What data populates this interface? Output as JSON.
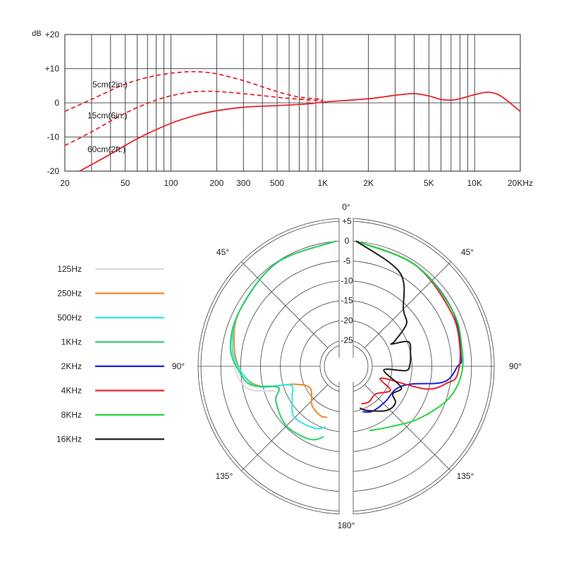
{
  "chart_data": [
    {
      "type": "line",
      "title": "",
      "xlabel": "",
      "ylabel": "",
      "x_scale": "log",
      "xlim": [
        20,
        20000
      ],
      "ylim": [
        -20,
        20
      ],
      "grid": true,
      "y_axis_unit": "dB",
      "x_ticks": [
        {
          "value": 20,
          "label": "20"
        },
        {
          "value": 50,
          "label": "50"
        },
        {
          "value": 100,
          "label": "100"
        },
        {
          "value": 200,
          "label": "200"
        },
        {
          "value": 300,
          "label": "300"
        },
        {
          "value": 500,
          "label": "500"
        },
        {
          "value": 1000,
          "label": "1K"
        },
        {
          "value": 2000,
          "label": "2K"
        },
        {
          "value": 5000,
          "label": "5K"
        },
        {
          "value": 10000,
          "label": "10K"
        },
        {
          "value": 20000,
          "label": "20KHz"
        }
      ],
      "y_ticks": [
        {
          "value": 20,
          "label": "+20"
        },
        {
          "value": 10,
          "label": "+10"
        },
        {
          "value": 0,
          "label": "0"
        },
        {
          "value": -10,
          "label": "-10"
        },
        {
          "value": -20,
          "label": "-20"
        }
      ],
      "series": [
        {
          "name": "5cm(2in.)",
          "color": "#e8232a",
          "dashed": true,
          "points": [
            [
              20,
              -2.5
            ],
            [
              30,
              1
            ],
            [
              50,
              5.5
            ],
            [
              80,
              8
            ],
            [
              120,
              9
            ],
            [
              150,
              9.1
            ],
            [
              200,
              8.5
            ],
            [
              300,
              6.5
            ],
            [
              500,
              3.3
            ],
            [
              700,
              1.7
            ],
            [
              1000,
              1
            ]
          ]
        },
        {
          "name": "15cm(6in.)",
          "color": "#e8232a",
          "dashed": true,
          "points": [
            [
              20,
              -12.5
            ],
            [
              30,
              -8.5
            ],
            [
              50,
              -3
            ],
            [
              80,
              0.8
            ],
            [
              120,
              2.8
            ],
            [
              170,
              3.4
            ],
            [
              250,
              3
            ],
            [
              400,
              2.1
            ],
            [
              600,
              1.3
            ],
            [
              1000,
              0.6
            ]
          ]
        },
        {
          "name": "60cm(2ft.)",
          "color": "#e8232a",
          "dashed": false,
          "points": [
            [
              25,
              -20
            ],
            [
              40,
              -15
            ],
            [
              60,
              -10.5
            ],
            [
              100,
              -6
            ],
            [
              150,
              -3.5
            ],
            [
              200,
              -2.3
            ],
            [
              300,
              -1.3
            ],
            [
              500,
              -0.8
            ],
            [
              800,
              -0.3
            ],
            [
              1000,
              0.2
            ],
            [
              2000,
              1.2
            ],
            [
              3000,
              2.2
            ],
            [
              4000,
              2.7
            ],
            [
              5000,
              2
            ],
            [
              6000,
              1
            ],
            [
              7000,
              0.8
            ],
            [
              8000,
              1.2
            ],
            [
              10000,
              2.4
            ],
            [
              12000,
              3.1
            ],
            [
              14000,
              2.6
            ],
            [
              16000,
              1
            ],
            [
              20000,
              -2.5
            ]
          ]
        }
      ],
      "annotations": [
        "5cm(2in.)",
        "15cm(6in.)",
        "60cm(2ft.)"
      ]
    },
    {
      "type": "polar",
      "title": "",
      "r_unit": "dB",
      "r_range": [
        -25,
        5
      ],
      "r_ticks": [
        "+5",
        "0",
        "-5",
        "-10",
        "-15",
        "-20",
        "-25"
      ],
      "r_tick_values": [
        5,
        0,
        -5,
        -10,
        -15,
        -20,
        -25
      ],
      "angle_labels": [
        "0°",
        "45°",
        "45°",
        "90°",
        "90°",
        "135°",
        "135°",
        "180°"
      ],
      "legend_placement": "left",
      "series": [
        {
          "name": "125Hz",
          "color": "#dcdcdc",
          "side": "left",
          "points": [
            [
              0,
              0
            ],
            [
              30,
              -1.5
            ],
            [
              60,
              -3.5
            ],
            [
              80,
              -5
            ],
            [
              95,
              -6.5
            ],
            [
              105,
              -9
            ],
            [
              112,
              -15
            ]
          ]
        },
        {
          "name": "250Hz",
          "color": "#f0882a",
          "side": "left",
          "points": [
            [
              0,
              0
            ],
            [
              30,
              -1.5
            ],
            [
              60,
              -3.5
            ],
            [
              80,
              -5.5
            ],
            [
              95,
              -8
            ],
            [
              105,
              -12
            ],
            [
              113,
              -20
            ],
            [
              130,
              -23
            ],
            [
              148,
              -20
            ],
            [
              162,
              -18.5
            ],
            [
              170,
              -18.5
            ]
          ]
        },
        {
          "name": "500Hz",
          "color": "#2ce8e8",
          "side": "left",
          "points": [
            [
              0,
              0
            ],
            [
              30,
              -1.5
            ],
            [
              60,
              -3.5
            ],
            [
              80,
              -5
            ],
            [
              95,
              -8
            ],
            [
              105,
              -11.5
            ],
            [
              112,
              -19
            ],
            [
              125,
              -18
            ],
            [
              140,
              -15
            ],
            [
              160,
              -15
            ],
            [
              170,
              -16
            ]
          ]
        },
        {
          "name": "1KHz",
          "color": "#2fcf6a",
          "side": "left",
          "points": [
            [
              0,
              0
            ],
            [
              30,
              -1.5
            ],
            [
              60,
              -3.5
            ],
            [
              80,
              -4.5
            ],
            [
              95,
              -7.5
            ],
            [
              103,
              -10
            ],
            [
              110,
              -16
            ],
            [
              120,
              -14
            ],
            [
              140,
              -12
            ],
            [
              160,
              -12
            ],
            [
              170,
              -13.5
            ]
          ]
        },
        {
          "name": "2KHz",
          "color": "#1c22d6",
          "side": "right",
          "points": [
            [
              0,
              0
            ],
            [
              30,
              -2
            ],
            [
              60,
              -3.5
            ],
            [
              85,
              -5
            ],
            [
              90,
              -6
            ],
            [
              100,
              -9
            ],
            [
              108,
              -17
            ],
            [
              120,
              -20
            ],
            [
              140,
              -20
            ],
            [
              160,
              -19.5
            ],
            [
              172,
              -20
            ]
          ]
        },
        {
          "name": "4KHz",
          "color": "#e8232a",
          "side": "right",
          "points": [
            [
              0,
              0
            ],
            [
              30,
              -2
            ],
            [
              60,
              -4
            ],
            [
              80,
              -5
            ],
            [
              95,
              -6
            ],
            [
              100,
              -8
            ],
            [
              108,
              -13
            ],
            [
              115,
              -24.5
            ],
            [
              125,
              -21
            ],
            [
              145,
              -23
            ],
            [
              160,
              -22
            ],
            [
              172,
              -22
            ]
          ]
        },
        {
          "name": "8KHz",
          "color": "#23d63c",
          "side": "right",
          "points": [
            [
              0,
              0
            ],
            [
              30,
              -2
            ],
            [
              60,
              -3.5
            ],
            [
              80,
              -4.5
            ],
            [
              95,
              -5
            ],
            [
              110,
              -7
            ],
            [
              130,
              -11
            ],
            [
              150,
              -14
            ],
            [
              168,
              -15
            ]
          ]
        },
        {
          "name": "16KHz",
          "color": "#1e1e1e",
          "side": "right",
          "points": [
            [
              0,
              0
            ],
            [
              25,
              -5.5
            ],
            [
              40,
              -13
            ],
            [
              50,
              -15
            ],
            [
              57,
              -20
            ],
            [
              58,
              -21
            ],
            [
              65,
              -17
            ],
            [
              77,
              -17.5
            ],
            [
              88,
              -18
            ],
            [
              95,
              -19
            ],
            [
              98,
              -24.5
            ],
            [
              115,
              -19
            ],
            [
              127,
              -20
            ],
            [
              133,
              -18
            ],
            [
              145,
              -18
            ],
            [
              165,
              -20
            ],
            [
              175,
              -21
            ]
          ]
        }
      ]
    }
  ]
}
